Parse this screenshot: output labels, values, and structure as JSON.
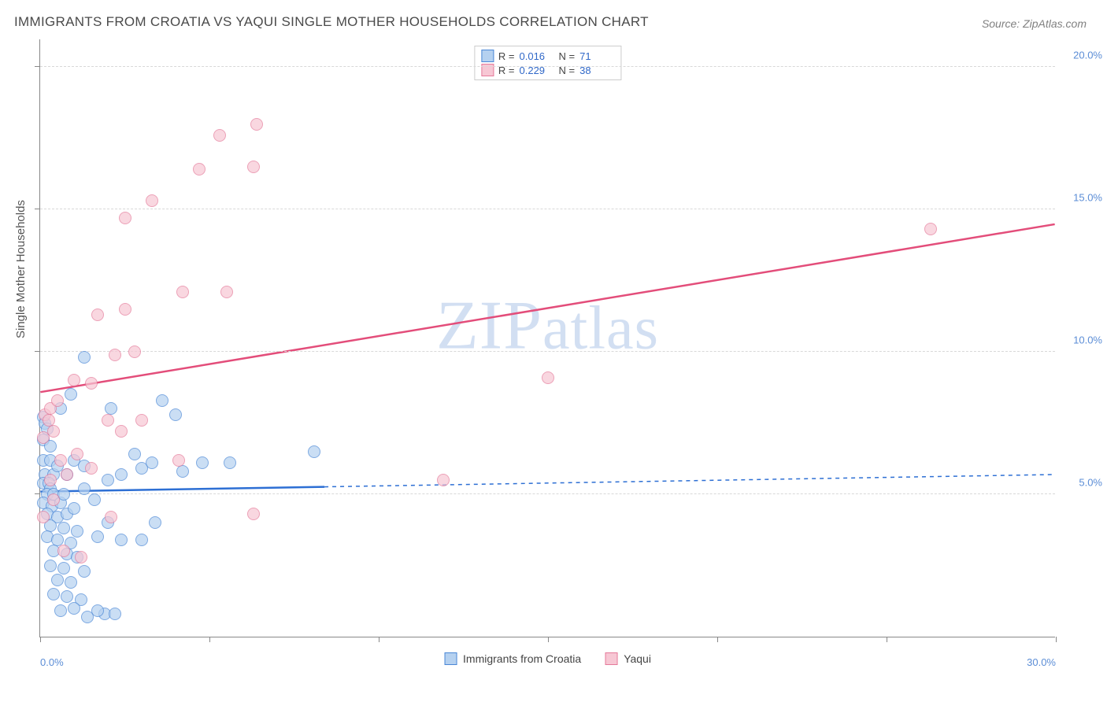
{
  "title": "IMMIGRANTS FROM CROATIA VS YAQUI SINGLE MOTHER HOUSEHOLDS CORRELATION CHART",
  "source": "Source: ZipAtlas.com",
  "watermark_text": "ZIPatlas",
  "axis": {
    "y_title": "Single Mother Households",
    "xlim": [
      0,
      30
    ],
    "ylim": [
      0,
      21
    ],
    "x_ticks": [
      0,
      5,
      10,
      15,
      20,
      25,
      30
    ],
    "x_labels": {
      "0": "0.0%",
      "30": "30.0%"
    },
    "y_gridlines": [
      5,
      10,
      15,
      20
    ],
    "y_labels": {
      "5": "5.0%",
      "10": "10.0%",
      "15": "15.0%",
      "20": "20.0%"
    }
  },
  "series": [
    {
      "name": "Immigrants from Croatia",
      "color_fill": "#b5d1f0",
      "color_stroke": "#4a87d6",
      "marker_size": 16,
      "marker_opacity": 0.7,
      "stats": {
        "R": "0.016",
        "N": "71"
      },
      "regression": {
        "x1": 0,
        "y1": 5.1,
        "x2": 30,
        "y2": 5.7,
        "solid_to_x": 8.4,
        "color": "#2d6fd4",
        "width": 2.5
      },
      "points": [
        [
          0.1,
          7.7
        ],
        [
          0.15,
          7.5
        ],
        [
          0.2,
          7.3
        ],
        [
          0.1,
          6.9
        ],
        [
          0.3,
          6.7
        ],
        [
          0.1,
          6.2
        ],
        [
          0.3,
          6.2
        ],
        [
          0.15,
          5.7
        ],
        [
          0.4,
          5.7
        ],
        [
          0.1,
          5.4
        ],
        [
          0.25,
          5.4
        ],
        [
          0.3,
          5.2
        ],
        [
          0.2,
          5.0
        ],
        [
          0.4,
          5.0
        ],
        [
          0.1,
          4.7
        ],
        [
          0.35,
          4.6
        ],
        [
          0.6,
          4.7
        ],
        [
          0.2,
          4.3
        ],
        [
          0.5,
          4.2
        ],
        [
          0.8,
          4.3
        ],
        [
          0.3,
          3.9
        ],
        [
          0.7,
          3.8
        ],
        [
          0.2,
          3.5
        ],
        [
          0.5,
          3.4
        ],
        [
          0.9,
          3.3
        ],
        [
          0.4,
          3.0
        ],
        [
          0.8,
          2.9
        ],
        [
          1.1,
          2.8
        ],
        [
          0.3,
          2.5
        ],
        [
          0.7,
          2.4
        ],
        [
          1.3,
          2.3
        ],
        [
          0.5,
          2.0
        ],
        [
          0.9,
          1.9
        ],
        [
          0.4,
          1.5
        ],
        [
          0.8,
          1.4
        ],
        [
          1.2,
          1.3
        ],
        [
          0.6,
          0.9
        ],
        [
          1.0,
          1.0
        ],
        [
          1.4,
          0.7
        ],
        [
          1.9,
          0.8
        ],
        [
          1.7,
          0.9
        ],
        [
          2.2,
          0.8
        ],
        [
          0.5,
          6.0
        ],
        [
          0.8,
          5.7
        ],
        [
          1.0,
          6.2
        ],
        [
          1.3,
          6.0
        ],
        [
          0.7,
          5.0
        ],
        [
          1.0,
          4.5
        ],
        [
          1.3,
          5.2
        ],
        [
          1.6,
          4.8
        ],
        [
          1.1,
          3.7
        ],
        [
          1.7,
          3.5
        ],
        [
          2.0,
          4.0
        ],
        [
          2.4,
          5.7
        ],
        [
          2.0,
          5.5
        ],
        [
          2.4,
          3.4
        ],
        [
          3.0,
          5.9
        ],
        [
          3.0,
          3.4
        ],
        [
          3.3,
          6.1
        ],
        [
          3.6,
          8.3
        ],
        [
          2.8,
          6.4
        ],
        [
          3.4,
          4.0
        ],
        [
          4.2,
          5.8
        ],
        [
          4.8,
          6.1
        ],
        [
          5.6,
          6.1
        ],
        [
          0.6,
          8.0
        ],
        [
          0.9,
          8.5
        ],
        [
          1.3,
          9.8
        ],
        [
          2.1,
          8.0
        ],
        [
          4.0,
          7.8
        ],
        [
          8.1,
          6.5
        ]
      ]
    },
    {
      "name": "Yaqui",
      "color_fill": "#f7c7d4",
      "color_stroke": "#e57a9a",
      "marker_size": 16,
      "marker_opacity": 0.7,
      "stats": {
        "R": "0.229",
        "N": "38"
      },
      "regression": {
        "x1": 0,
        "y1": 8.6,
        "x2": 30,
        "y2": 14.5,
        "solid_to_x": 30,
        "color": "#e34d7a",
        "width": 2.5
      },
      "points": [
        [
          0.15,
          7.8
        ],
        [
          0.25,
          7.6
        ],
        [
          0.3,
          8.0
        ],
        [
          0.5,
          8.3
        ],
        [
          0.4,
          7.2
        ],
        [
          0.1,
          7.0
        ],
        [
          0.6,
          6.2
        ],
        [
          0.3,
          5.5
        ],
        [
          0.8,
          5.7
        ],
        [
          0.4,
          4.8
        ],
        [
          0.1,
          4.2
        ],
        [
          0.7,
          3.0
        ],
        [
          1.2,
          2.8
        ],
        [
          1.5,
          5.9
        ],
        [
          2.0,
          7.6
        ],
        [
          3.0,
          7.6
        ],
        [
          2.4,
          7.2
        ],
        [
          1.1,
          6.4
        ],
        [
          1.0,
          9.0
        ],
        [
          1.5,
          8.9
        ],
        [
          2.2,
          9.9
        ],
        [
          2.8,
          10.0
        ],
        [
          1.7,
          11.3
        ],
        [
          2.5,
          11.5
        ],
        [
          4.2,
          12.1
        ],
        [
          5.5,
          12.1
        ],
        [
          2.5,
          14.7
        ],
        [
          3.3,
          15.3
        ],
        [
          4.7,
          16.4
        ],
        [
          6.3,
          16.5
        ],
        [
          5.3,
          17.6
        ],
        [
          6.4,
          18.0
        ],
        [
          2.1,
          4.2
        ],
        [
          6.3,
          4.3
        ],
        [
          11.9,
          5.5
        ],
        [
          15.0,
          9.1
        ],
        [
          26.3,
          14.3
        ],
        [
          4.1,
          6.2
        ]
      ]
    }
  ],
  "legend_box_label_R": "R =",
  "legend_box_label_N": "N ="
}
